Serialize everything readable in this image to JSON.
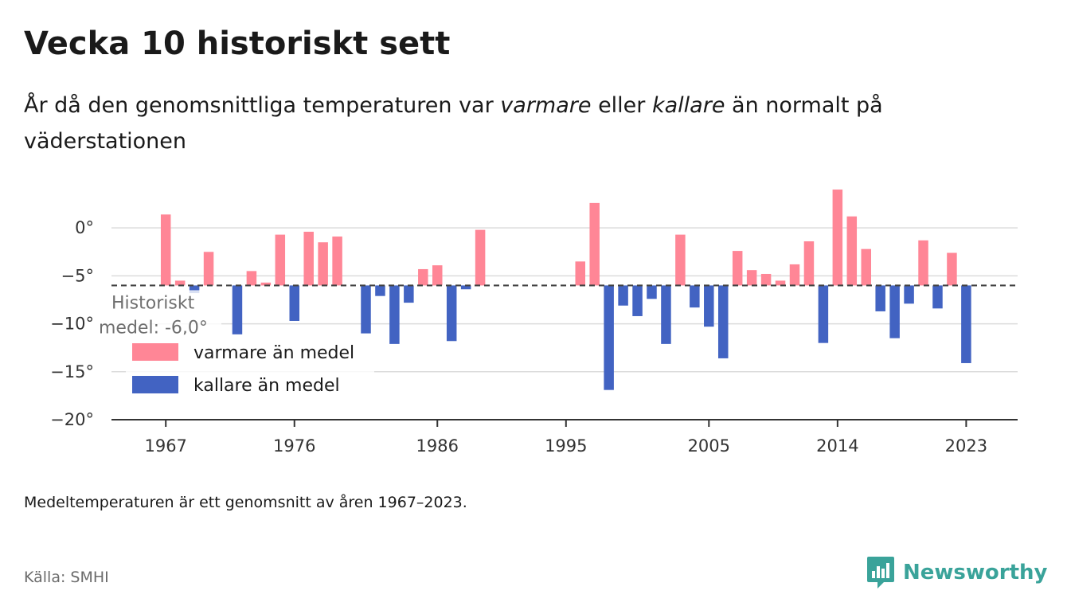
{
  "title": "Vecka 10 historiskt sett",
  "subtitle": {
    "part1": "År då den genomsnittliga temperaturen var ",
    "warm_word": "varmare",
    "part2": " eller ",
    "cold_word": "kallare",
    "part3": " än normalt på väderstationen"
  },
  "note": "Medeltemperaturen är ett genomsnitt av åren 1967–2023.",
  "source": "Källa: SMHI",
  "brand": {
    "name": "Newsworthy",
    "icon": "newsworthy-logo-icon"
  },
  "colors": {
    "warm": "#ff8696",
    "cold": "#4263c2",
    "reference": "#444444",
    "brand": "#3aa39a"
  },
  "chart_data": {
    "type": "bar",
    "ylim": [
      -20,
      4.5
    ],
    "xlim": [
      1963.2,
      2026.6
    ],
    "y_ticks": [
      0,
      -5,
      -10,
      -15,
      -20
    ],
    "y_tick_labels": [
      "0°",
      "−5°",
      "−10°",
      "−15°",
      "−20°"
    ],
    "x_ticks": [
      1967,
      1976,
      1986,
      1995,
      2005,
      2014,
      2023
    ],
    "x_tick_labels": [
      "1967",
      "1976",
      "1986",
      "1995",
      "2005",
      "2014",
      "2023"
    ],
    "grid": "horizontal",
    "reference": {
      "value": -6.0,
      "label_line1": "Historiskt",
      "label_line2": "medel: -6,0°"
    },
    "legend": {
      "position": "bottom-left",
      "items": [
        {
          "label": "varmare än medel",
          "color": "#ff8696"
        },
        {
          "label": "kallare än medel",
          "color": "#4263c2"
        }
      ]
    },
    "series": [
      {
        "name": "varmare än medel",
        "points": [
          {
            "x": 1967,
            "y": 1.4
          },
          {
            "x": 1968,
            "y": -5.5
          },
          {
            "x": 1970,
            "y": -2.5
          },
          {
            "x": 1973,
            "y": -4.5
          },
          {
            "x": 1974,
            "y": -5.7
          },
          {
            "x": 1975,
            "y": -0.7
          },
          {
            "x": 1977,
            "y": -0.4
          },
          {
            "x": 1978,
            "y": -1.5
          },
          {
            "x": 1979,
            "y": -0.9
          },
          {
            "x": 1985,
            "y": -4.3
          },
          {
            "x": 1986,
            "y": -3.9
          },
          {
            "x": 1989,
            "y": -0.2
          },
          {
            "x": 1996,
            "y": -3.5
          },
          {
            "x": 1997,
            "y": 2.6
          },
          {
            "x": 2003,
            "y": -0.7
          },
          {
            "x": 2007,
            "y": -2.4
          },
          {
            "x": 2008,
            "y": -4.4
          },
          {
            "x": 2009,
            "y": -4.8
          },
          {
            "x": 2010,
            "y": -5.5
          },
          {
            "x": 2011,
            "y": -3.8
          },
          {
            "x": 2012,
            "y": -1.4
          },
          {
            "x": 2014,
            "y": 4.0
          },
          {
            "x": 2015,
            "y": 1.2
          },
          {
            "x": 2016,
            "y": -2.2
          },
          {
            "x": 2020,
            "y": -1.3
          },
          {
            "x": 2022,
            "y": -2.6
          }
        ]
      },
      {
        "name": "kallare än medel",
        "points": [
          {
            "x": 1969,
            "y": -6.8
          },
          {
            "x": 1972,
            "y": -11.1
          },
          {
            "x": 1976,
            "y": -9.7
          },
          {
            "x": 1981,
            "y": -11.0
          },
          {
            "x": 1982,
            "y": -7.1
          },
          {
            "x": 1983,
            "y": -12.1
          },
          {
            "x": 1984,
            "y": -7.8
          },
          {
            "x": 1987,
            "y": -11.8
          },
          {
            "x": 1988,
            "y": -6.4
          },
          {
            "x": 1998,
            "y": -16.9
          },
          {
            "x": 1999,
            "y": -8.1
          },
          {
            "x": 2000,
            "y": -9.2
          },
          {
            "x": 2001,
            "y": -7.4
          },
          {
            "x": 2002,
            "y": -12.1
          },
          {
            "x": 2004,
            "y": -8.3
          },
          {
            "x": 2005,
            "y": -10.3
          },
          {
            "x": 2006,
            "y": -13.6
          },
          {
            "x": 2013,
            "y": -12.0
          },
          {
            "x": 2017,
            "y": -8.7
          },
          {
            "x": 2018,
            "y": -11.5
          },
          {
            "x": 2019,
            "y": -7.9
          },
          {
            "x": 2021,
            "y": -8.4
          },
          {
            "x": 2023,
            "y": -14.1
          }
        ]
      }
    ]
  }
}
